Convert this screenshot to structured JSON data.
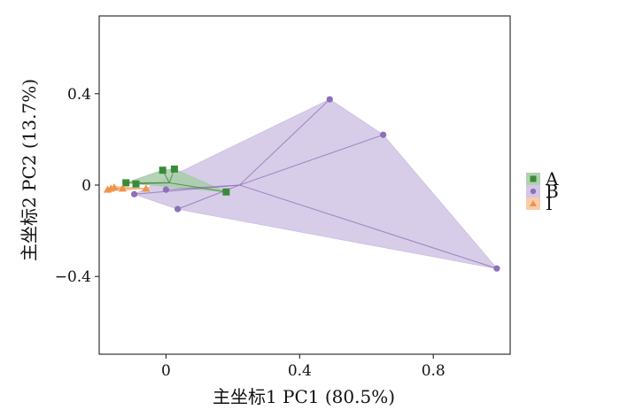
{
  "chart_data": {
    "type": "scatter",
    "xlabel": "主坐标1 PC1 (80.5%)",
    "ylabel": "主坐标2  PC2 (13.7%)",
    "xlim": [
      -0.2,
      1.03
    ],
    "ylim": [
      -0.74,
      0.74
    ],
    "xticks": [
      0,
      0.4,
      0.8
    ],
    "yticks": [
      -0.4,
      0,
      0.4
    ],
    "xtick_labels": [
      "0",
      "0.4",
      "0.8"
    ],
    "ytick_labels": [
      "−0.4",
      "0",
      "0.4"
    ],
    "grid": false,
    "legend_position": "right",
    "series": [
      {
        "name": "A",
        "marker": "square",
        "color": "#3a8a3a",
        "fill": "#a8cca8",
        "centroid": [
          0.01,
          0.01
        ],
        "points": [
          [
            -0.12,
            0.01
          ],
          [
            -0.01,
            0.065
          ],
          [
            0.025,
            0.07
          ],
          [
            0.18,
            -0.03
          ],
          [
            -0.09,
            0.005
          ]
        ],
        "hull": [
          [
            -0.12,
            0.01
          ],
          [
            -0.01,
            0.065
          ],
          [
            0.025,
            0.07
          ],
          [
            0.18,
            -0.03
          ]
        ]
      },
      {
        "name": "B",
        "marker": "circle",
        "color": "#8e70b8",
        "fill": "#cec1e2",
        "centroid": [
          0.22,
          0.0
        ],
        "points": [
          [
            0.49,
            0.375
          ],
          [
            0.65,
            0.22
          ],
          [
            0.99,
            -0.365
          ],
          [
            0.035,
            -0.105
          ],
          [
            -0.095,
            -0.04
          ],
          [
            0.0,
            -0.02
          ]
        ],
        "hull": [
          [
            -0.095,
            -0.04
          ],
          [
            0.49,
            0.375
          ],
          [
            0.65,
            0.22
          ],
          [
            0.99,
            -0.365
          ],
          [
            0.035,
            -0.105
          ]
        ]
      },
      {
        "name": "I",
        "marker": "triangle",
        "color": "#f0944a",
        "fill": "#f7c8a0",
        "centroid": [
          -0.14,
          -0.015
        ],
        "points": [
          [
            -0.175,
            -0.02
          ],
          [
            -0.165,
            -0.015
          ],
          [
            -0.155,
            -0.01
          ],
          [
            -0.13,
            -0.015
          ],
          [
            -0.06,
            -0.015
          ]
        ],
        "hull": [
          [
            -0.175,
            -0.02
          ],
          [
            -0.155,
            -0.005
          ],
          [
            -0.06,
            -0.015
          ],
          [
            -0.165,
            -0.025
          ]
        ]
      }
    ]
  }
}
